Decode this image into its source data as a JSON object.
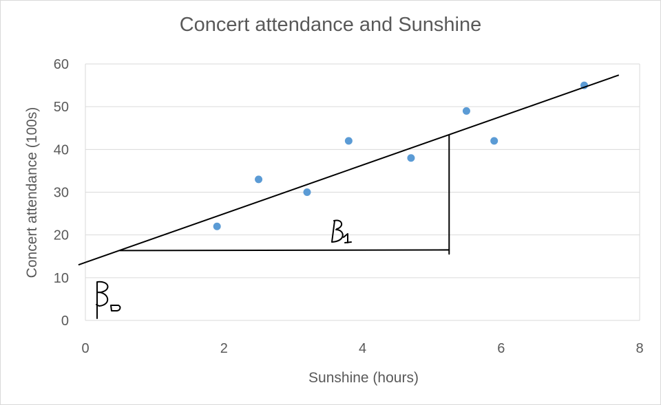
{
  "chart_data": {
    "type": "scatter",
    "title": "Concert attendance and Sunshine",
    "xlabel": "Sunshine  (hours)",
    "ylabel": "Concert attendance (100s)",
    "xlim": [
      0,
      8
    ],
    "ylim": [
      0,
      60
    ],
    "xticks": [
      0,
      2,
      4,
      6,
      8
    ],
    "yticks": [
      0,
      10,
      20,
      30,
      40,
      50,
      60
    ],
    "grid": "horizontal",
    "marker_color": "#5b9bd5",
    "points": [
      {
        "x": 1.9,
        "y": 22
      },
      {
        "x": 2.5,
        "y": 33
      },
      {
        "x": 3.2,
        "y": 30
      },
      {
        "x": 3.8,
        "y": 42
      },
      {
        "x": 4.7,
        "y": 38
      },
      {
        "x": 5.5,
        "y": 49
      },
      {
        "x": 5.9,
        "y": 42
      },
      {
        "x": 7.2,
        "y": 55
      }
    ],
    "annotations": {
      "regression_line": {
        "from": {
          "x": -0.1,
          "y": 13
        },
        "to": {
          "x": 7.7,
          "y": 57.4
        }
      },
      "slope_triangle": {
        "x0": 0.5,
        "x1": 5.25,
        "y_base": 16.5,
        "y_top": 43.5
      },
      "beta0_label": "B₀",
      "beta1_label": "B₁"
    }
  }
}
